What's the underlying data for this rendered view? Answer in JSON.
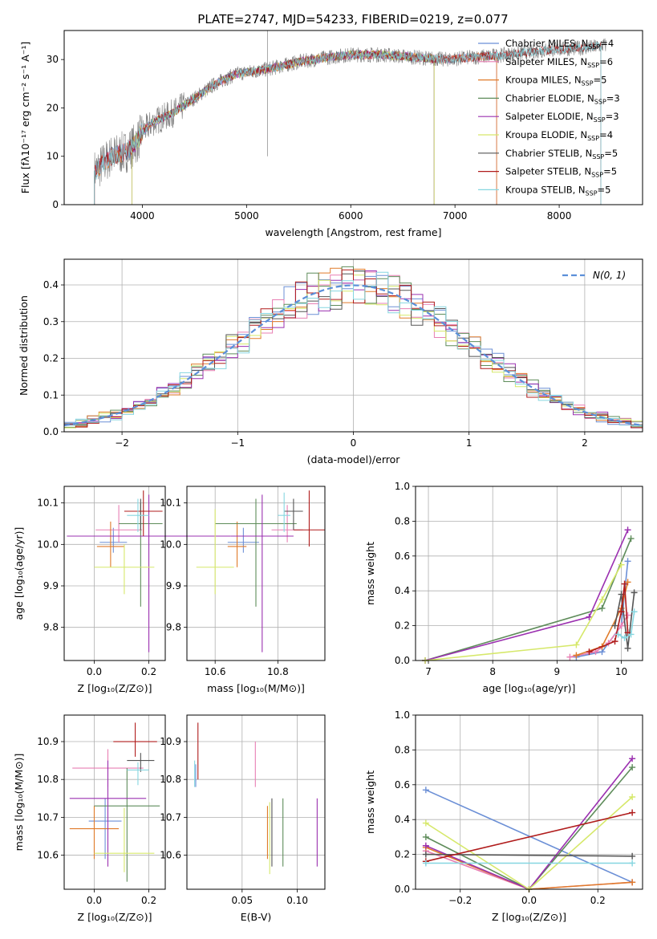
{
  "title": "PLATE=2747, MJD=54233, FIBERID=0219, z=0.077",
  "models": [
    {
      "name": "Chabrier MILES",
      "nssp": "4",
      "color": "#6b8fd6"
    },
    {
      "name": "Salpeter MILES",
      "nssp": "6",
      "color": "#e87fb3"
    },
    {
      "name": "Kroupa MILES",
      "nssp": "5",
      "color": "#e07b2a"
    },
    {
      "name": "Chabrier ELODIE",
      "nssp": "3",
      "color": "#5e8c5a"
    },
    {
      "name": "Salpeter ELODIE",
      "nssp": "3",
      "color": "#9b30b0"
    },
    {
      "name": "Kroupa ELODIE",
      "nssp": "4",
      "color": "#d6e86a"
    },
    {
      "name": "Chabrier STELIB",
      "nssp": "5",
      "color": "#555555"
    },
    {
      "name": "Salpeter STELIB",
      "nssp": "5",
      "color": "#b01c1c"
    },
    {
      "name": "Kroupa STELIB",
      "nssp": "5",
      "color": "#86d6e0"
    }
  ],
  "chart_data": [
    {
      "id": "spectrum",
      "type": "line",
      "xlabel": "wavelength [Angstrom, rest frame]",
      "ylabel": "Flux [fλ10⁻¹⁷ erg cm⁻² s⁻¹ A⁻¹]",
      "xlim": [
        3250,
        8800
      ],
      "ylim": [
        0,
        36
      ],
      "xticks": [
        4000,
        5000,
        6000,
        7000,
        8000
      ],
      "yticks": [
        0,
        10,
        20,
        30
      ],
      "continuum": {
        "x": [
          3550,
          3700,
          3850,
          3950,
          4000,
          4100,
          4300,
          4500,
          4700,
          4900,
          5200,
          5500,
          5800,
          6000,
          6300,
          6600,
          6900,
          7200,
          7500,
          7900,
          8300,
          8450
        ],
        "y": [
          7,
          10,
          11,
          13,
          15,
          17,
          19,
          22,
          25,
          27,
          28,
          29.5,
          30.5,
          31,
          31,
          30.5,
          30,
          30.5,
          31,
          32,
          32.5,
          33
        ]
      },
      "model_ranges": [
        {
          "model": "Chabrier MILES",
          "x": [
            3540,
            7400
          ]
        },
        {
          "model": "Salpeter MILES",
          "x": [
            3540,
            7400
          ]
        },
        {
          "model": "Kroupa MILES",
          "x": [
            3540,
            7400
          ]
        },
        {
          "model": "Chabrier ELODIE",
          "x": [
            3900,
            6800
          ]
        },
        {
          "model": "Salpeter ELODIE",
          "x": [
            3900,
            6800
          ]
        },
        {
          "model": "Kroupa ELODIE",
          "x": [
            3900,
            6800
          ]
        },
        {
          "model": "Chabrier STELIB",
          "x": [
            3540,
            8400
          ]
        },
        {
          "model": "Salpeter STELIB",
          "x": [
            3540,
            8400
          ]
        },
        {
          "model": "Kroupa STELIB",
          "x": [
            3540,
            8400
          ]
        }
      ]
    },
    {
      "id": "residuals",
      "type": "histogram",
      "xlabel": "(data-model)/error",
      "ylabel": "Normed distribution",
      "xlim": [
        -2.5,
        2.5
      ],
      "ylim": [
        0,
        0.47
      ],
      "xticks": [
        -2,
        -1,
        0,
        1,
        2
      ],
      "yticks": [
        0.0,
        0.1,
        0.2,
        0.3,
        0.4
      ],
      "grid": true,
      "legend": "N(0, 1)",
      "bin_width": 0.1,
      "x_start": -2.5
    },
    {
      "id": "age_vs_z",
      "type": "errorbar",
      "xlabel": "Z [log₁₀(Z/Z⊙)]",
      "ylabel": "age  [log₁₀(age/yr)]",
      "xlim": [
        -0.11,
        0.26
      ],
      "ylim": [
        9.72,
        10.14
      ],
      "xticks": [
        0.0,
        0.2
      ],
      "yticks": [
        9.8,
        9.9,
        10.0,
        10.1
      ],
      "grid": true,
      "points": [
        {
          "model": "Chabrier MILES",
          "x": 0.07,
          "y": 10.005,
          "xerr": 0.05,
          "yerr": [
            0.025,
            0.035
          ]
        },
        {
          "model": "Salpeter MILES",
          "x": 0.09,
          "y": 10.035,
          "xerr": 0.085,
          "yerr": [
            0.03,
            0.06
          ]
        },
        {
          "model": "Kroupa MILES",
          "x": 0.06,
          "y": 9.995,
          "xerr": 0.05,
          "yerr": [
            0.05,
            0.06
          ]
        },
        {
          "model": "Chabrier ELODIE",
          "x": 0.17,
          "y": 10.05,
          "xerr": 0.08,
          "yerr": [
            0.2,
            0.05
          ]
        },
        {
          "model": "Salpeter ELODIE",
          "x": 0.2,
          "y": 10.02,
          "xerr": 0.3,
          "yerr": [
            0.28,
            0.1
          ]
        },
        {
          "model": "Kroupa ELODIE",
          "x": 0.11,
          "y": 9.945,
          "xerr": 0.11,
          "yerr": [
            0.065,
            0.055
          ]
        },
        {
          "model": "Chabrier STELIB",
          "x": 0.17,
          "y": 10.08,
          "xerr": 0.04,
          "yerr": [
            0.045,
            0.03
          ]
        },
        {
          "model": "Salpeter STELIB",
          "x": 0.18,
          "y": 10.08,
          "xerr": 0.07,
          "yerr": [
            0.06,
            0.05
          ]
        },
        {
          "model": "Kroupa STELIB",
          "x": 0.16,
          "y": 10.07,
          "xerr": 0.04,
          "yerr": [
            0.04,
            0.04
          ]
        }
      ]
    },
    {
      "id": "age_vs_mass",
      "type": "errorbar",
      "xlabel": "mass [log₁₀(M/M⊙)]",
      "ylabel": "",
      "xlim": [
        10.51,
        10.95
      ],
      "ylim": [
        9.72,
        10.14
      ],
      "xticks": [
        10.6,
        10.8
      ],
      "yticks": [
        9.8,
        9.9,
        10.0,
        10.1
      ],
      "grid": true,
      "points": [
        {
          "model": "Chabrier MILES",
          "x": 10.69,
          "y": 10.005,
          "xerr": 0.05,
          "yerr": [
            0.025,
            0.035
          ]
        },
        {
          "model": "Salpeter MILES",
          "x": 10.83,
          "y": 10.035,
          "xerr": 0.05,
          "yerr": [
            0.03,
            0.06
          ]
        },
        {
          "model": "Kroupa MILES",
          "x": 10.67,
          "y": 9.995,
          "xerr": 0.03,
          "yerr": [
            0.05,
            0.06
          ]
        },
        {
          "model": "Chabrier ELODIE",
          "x": 10.73,
          "y": 10.05,
          "xerr": 0.13,
          "yerr": [
            0.2,
            0.06
          ]
        },
        {
          "model": "Salpeter ELODIE",
          "x": 10.75,
          "y": 10.02,
          "xerr": 0.1,
          "yerr": [
            0.28,
            0.1
          ]
        },
        {
          "model": "Kroupa ELODIE",
          "x": 10.6,
          "y": 9.945,
          "xerr": 0.06,
          "yerr": [
            0.065,
            0.14
          ]
        },
        {
          "model": "Chabrier STELIB",
          "x": 10.85,
          "y": 10.08,
          "xerr": 0.03,
          "yerr": [
            0.045,
            0.03
          ]
        },
        {
          "model": "Salpeter STELIB",
          "x": 10.9,
          "y": 10.035,
          "xerr": 0.05,
          "yerr": [
            0.04,
            0.095
          ]
        },
        {
          "model": "Kroupa STELIB",
          "x": 10.82,
          "y": 10.07,
          "xerr": 0.02,
          "yerr": [
            0.04,
            0.055
          ]
        }
      ]
    },
    {
      "id": "weight_vs_age",
      "type": "line",
      "xlabel": "age  [log₁₀(age/yr)]",
      "ylabel": "mass weight",
      "xlim": [
        6.8,
        10.33
      ],
      "ylim": [
        0,
        1
      ],
      "xticks": [
        7,
        8,
        9,
        10
      ],
      "yticks": [
        0.0,
        0.2,
        0.4,
        0.6,
        0.8,
        1.0
      ],
      "grid": true,
      "series": [
        {
          "model": "Chabrier MILES",
          "x": [
            9.3,
            9.7,
            10.0,
            10.1
          ],
          "y": [
            0.02,
            0.05,
            0.2,
            0.57
          ]
        },
        {
          "model": "Salpeter MILES",
          "x": [
            9.2,
            9.6,
            9.8,
            10.0,
            10.1
          ],
          "y": [
            0.02,
            0.05,
            0.1,
            0.2,
            0.26
          ]
        },
        {
          "model": "Kroupa MILES",
          "x": [
            9.3,
            9.7,
            10.0,
            10.1
          ],
          "y": [
            0.03,
            0.08,
            0.3,
            0.45
          ]
        },
        {
          "model": "Chabrier ELODIE",
          "x": [
            6.95,
            9.7,
            10.15
          ],
          "y": [
            0.0,
            0.3,
            0.7
          ]
        },
        {
          "model": "Salpeter ELODIE",
          "x": [
            6.95,
            9.5,
            10.1
          ],
          "y": [
            0.0,
            0.25,
            0.75
          ]
        },
        {
          "model": "Kroupa ELODIE",
          "x": [
            6.95,
            9.3,
            9.7,
            10.0
          ],
          "y": [
            0.0,
            0.09,
            0.35,
            0.55
          ]
        },
        {
          "model": "Chabrier STELIB",
          "x": [
            9.9,
            10.0,
            10.1,
            10.2
          ],
          "y": [
            0.2,
            0.38,
            0.07,
            0.39
          ]
        },
        {
          "model": "Salpeter STELIB",
          "x": [
            9.5,
            9.9,
            10.0,
            10.05,
            10.1
          ],
          "y": [
            0.05,
            0.11,
            0.28,
            0.44,
            0.16
          ]
        },
        {
          "model": "Kroupa STELIB",
          "x": [
            9.95,
            10.05,
            10.15,
            10.2
          ],
          "y": [
            0.15,
            0.13,
            0.15,
            0.28
          ]
        }
      ]
    },
    {
      "id": "mass_vs_z",
      "type": "errorbar",
      "xlabel": "Z [log₁₀(Z/Z⊙)]",
      "ylabel": "mass [log₁₀(M/M⊙)]",
      "xlim": [
        -0.11,
        0.26
      ],
      "ylim": [
        10.51,
        10.97
      ],
      "xticks": [
        0.0,
        0.2
      ],
      "yticks": [
        10.6,
        10.7,
        10.8,
        10.9
      ],
      "grid": true,
      "points": [
        {
          "model": "Chabrier MILES",
          "x": 0.04,
          "y": 10.69,
          "xerr": 0.06,
          "yerr": [
            0.1,
            0.06
          ]
        },
        {
          "model": "Salpeter MILES",
          "x": 0.05,
          "y": 10.83,
          "xerr": 0.13,
          "yerr": [
            0.05,
            0.05
          ]
        },
        {
          "model": "Kroupa MILES",
          "x": 0.0,
          "y": 10.67,
          "xerr": 0.09,
          "yerr": [
            0.08,
            0.06
          ]
        },
        {
          "model": "Chabrier ELODIE",
          "x": 0.12,
          "y": 10.73,
          "xerr": 0.12,
          "yerr": [
            0.2,
            0.1
          ]
        },
        {
          "model": "Salpeter ELODIE",
          "x": 0.05,
          "y": 10.75,
          "xerr": 0.14,
          "yerr": [
            0.18,
            0.1
          ]
        },
        {
          "model": "Kroupa ELODIE",
          "x": 0.11,
          "y": 10.605,
          "xerr": 0.11,
          "yerr": [
            0.05,
            0.12
          ]
        },
        {
          "model": "Chabrier STELIB",
          "x": 0.17,
          "y": 10.85,
          "xerr": 0.05,
          "yerr": [
            0.03,
            0.02
          ]
        },
        {
          "model": "Salpeter STELIB",
          "x": 0.15,
          "y": 10.9,
          "xerr": 0.08,
          "yerr": [
            0.04,
            0.05
          ]
        },
        {
          "model": "Kroupa STELIB",
          "x": 0.16,
          "y": 10.825,
          "xerr": 0.04,
          "yerr": [
            0.04,
            0.02
          ]
        }
      ]
    },
    {
      "id": "mass_vs_ebv",
      "type": "errorbar",
      "xlabel": "E(B-V)",
      "ylabel": "",
      "xlim": [
        0.0,
        0.125
      ],
      "ylim": [
        10.51,
        10.97
      ],
      "xticks": [
        0.05,
        0.1
      ],
      "yticks": [
        10.6,
        10.7,
        10.8,
        10.9
      ],
      "grid": true,
      "points": [
        {
          "model": "Chabrier MILES",
          "x": 0.008,
          "y": 10.81,
          "xerr": 0.0,
          "yerr": [
            0.03,
            0.03
          ]
        },
        {
          "model": "Salpeter MILES",
          "x": 0.062,
          "y": 10.83,
          "xerr": 0.0,
          "yerr": [
            0.05,
            0.07
          ]
        },
        {
          "model": "Kroupa MILES",
          "x": 0.073,
          "y": 10.67,
          "xerr": 0.0,
          "yerr": [
            0.08,
            0.06
          ]
        },
        {
          "model": "Chabrier ELODIE",
          "x": 0.087,
          "y": 10.67,
          "xerr": 0.0,
          "yerr": [
            0.1,
            0.08
          ]
        },
        {
          "model": "Salpeter ELODIE",
          "x": 0.118,
          "y": 10.66,
          "xerr": 0.0,
          "yerr": [
            0.09,
            0.09
          ]
        },
        {
          "model": "Kroupa ELODIE",
          "x": 0.075,
          "y": 10.64,
          "xerr": 0.0,
          "yerr": [
            0.09,
            0.1
          ]
        },
        {
          "model": "Chabrier STELIB",
          "x": 0.077,
          "y": 10.67,
          "xerr": 0.0,
          "yerr": [
            0.1,
            0.08
          ]
        },
        {
          "model": "Salpeter STELIB",
          "x": 0.01,
          "y": 10.87,
          "xerr": 0.0,
          "yerr": [
            0.07,
            0.08
          ]
        },
        {
          "model": "Kroupa STELIB",
          "x": 0.007,
          "y": 10.82,
          "xerr": 0.0,
          "yerr": [
            0.04,
            0.03
          ]
        }
      ]
    },
    {
      "id": "weight_vs_z",
      "type": "line",
      "xlabel": "Z [log₁₀(Z/Z⊙)]",
      "ylabel": "mass weight",
      "xlim": [
        -0.33,
        0.33
      ],
      "ylim": [
        0,
        1
      ],
      "xticks": [
        -0.2,
        0.0,
        0.2
      ],
      "yticks": [
        0.0,
        0.2,
        0.4,
        0.6,
        0.8,
        1.0
      ],
      "grid": true,
      "series": [
        {
          "model": "Chabrier MILES",
          "x": [
            -0.3,
            0.3
          ],
          "y": [
            0.57,
            0.04
          ]
        },
        {
          "model": "Salpeter MILES",
          "x": [
            -0.3,
            0.0,
            0.3
          ],
          "y": [
            0.22,
            0.0,
            0.04
          ]
        },
        {
          "model": "Kroupa MILES",
          "x": [
            -0.3,
            0.0,
            0.3
          ],
          "y": [
            0.24,
            0.0,
            0.04
          ]
        },
        {
          "model": "Chabrier ELODIE",
          "x": [
            -0.3,
            0.0,
            0.3
          ],
          "y": [
            0.3,
            0.0,
            0.7
          ]
        },
        {
          "model": "Salpeter ELODIE",
          "x": [
            -0.3,
            0.0,
            0.3
          ],
          "y": [
            0.25,
            0.0,
            0.75
          ]
        },
        {
          "model": "Kroupa ELODIE",
          "x": [
            -0.3,
            0.0,
            0.3
          ],
          "y": [
            0.38,
            0.0,
            0.53
          ]
        },
        {
          "model": "Chabrier STELIB",
          "x": [
            -0.3,
            0.3
          ],
          "y": [
            0.2,
            0.19
          ]
        },
        {
          "model": "Salpeter STELIB",
          "x": [
            -0.3,
            0.3
          ],
          "y": [
            0.16,
            0.44
          ]
        },
        {
          "model": "Kroupa STELIB",
          "x": [
            -0.3,
            0.3
          ],
          "y": [
            0.15,
            0.15
          ]
        }
      ]
    }
  ]
}
